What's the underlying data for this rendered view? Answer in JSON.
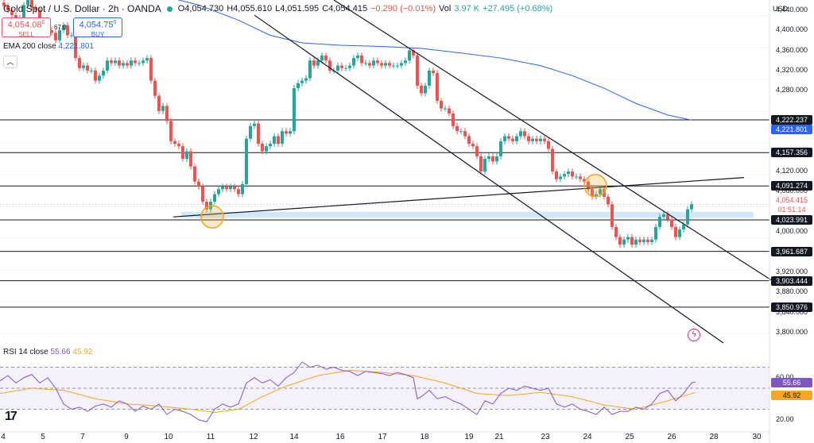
{
  "header": {
    "symbol": "Gold Spot / U.S. Dollar · 2h · OANDA",
    "open": "O4,054.730",
    "high": "H4,055.610",
    "low": "L4,051.595",
    "close": "C4,054.415",
    "change": "−0.290 (−0.01%)",
    "volume_label": "Vol",
    "volume": "3.97 K",
    "vol_change": "+27.495 (+0.68%)"
  },
  "trade": {
    "sell_price": "4,054.08",
    "sell_price_sup": "0",
    "sell_label": "SELL",
    "spread": "67.0",
    "buy_price": "4,054.75",
    "buy_price_sup": "0",
    "buy_label": "BUY"
  },
  "indicators": {
    "ema_label": "EMA 200 close",
    "ema_value": "4,221.801",
    "collapse_icon": "chevron-up-icon",
    "rsi_label": "RSI 14 close",
    "rsi_value": "55.66",
    "rsi_ma_value": "45.92"
  },
  "axis": {
    "currency": "USD",
    "price_ticks": [
      "4,440.000",
      "4,400.000",
      "4,360.000",
      "4,320.000",
      "4,280.000",
      "4,200.000",
      "4,120.000",
      "4,080.000",
      "4,000.000",
      "3,920.000",
      "3,880.000",
      "3,840.000",
      "3,800.000"
    ],
    "rsi_ticks": [
      "60.00",
      "40.00",
      "20.00"
    ],
    "date_ticks": [
      "4",
      "5",
      "7",
      "9",
      "10",
      "11",
      "12",
      "14",
      "16",
      "17",
      "18",
      "19",
      "21",
      "23",
      "24",
      "25",
      "26",
      "28",
      "30"
    ]
  },
  "levels": [
    {
      "label": "4,222.237",
      "value": 4222.237
    },
    {
      "label": "4,157.356",
      "value": 4157.356
    },
    {
      "label": "4,091.274",
      "value": 4091.274
    },
    {
      "label": "4,023.991",
      "value": 4023.991
    },
    {
      "label": "3,961.687",
      "value": 3961.687
    },
    {
      "label": "3,903.444",
      "value": 3903.444
    },
    {
      "label": "3,850.976",
      "value": 3850.976
    }
  ],
  "price_tags": {
    "ema_tag": "4,221.801",
    "last_price": "4,054.415",
    "countdown": "01:51:14",
    "rsi_tag": "55.66",
    "rsi_ma_tag": "45.92"
  },
  "colors": {
    "up": "#26a69a",
    "down": "#ef5350",
    "ema": "#2962ff",
    "rsi": "#7e57c2",
    "rsi_ma": "#f5a623",
    "zone": "#bbdefb",
    "highlight": "#f5a623",
    "rsi_band": "#ede7f6"
  },
  "chart_data": {
    "type": "candlestick",
    "title": "Gold Spot / U.S. Dollar · 2h · OANDA",
    "ylim": [
      3780,
      4460
    ],
    "x": [
      "4",
      "5",
      "7",
      "9",
      "10",
      "11",
      "12",
      "14",
      "16",
      "17",
      "18",
      "19",
      "21",
      "23",
      "24",
      "25",
      "26",
      "28",
      "30"
    ],
    "close_path": [
      [
        0,
        4455
      ],
      [
        5,
        4448
      ],
      [
        10,
        4440
      ],
      [
        15,
        4430
      ],
      [
        20,
        4425
      ],
      [
        25,
        4415
      ],
      [
        30,
        4450
      ],
      [
        35,
        4460
      ],
      [
        40,
        4445
      ],
      [
        45,
        4440
      ],
      [
        50,
        4410
      ],
      [
        55,
        4405
      ],
      [
        60,
        4400
      ],
      [
        65,
        4395
      ],
      [
        70,
        4380
      ],
      [
        75,
        4400
      ],
      [
        80,
        4410
      ],
      [
        85,
        4390
      ],
      [
        90,
        4390
      ],
      [
        95,
        4345
      ],
      [
        100,
        4325
      ],
      [
        105,
        4330
      ],
      [
        110,
        4320
      ],
      [
        115,
        4320
      ],
      [
        120,
        4300
      ],
      [
        125,
        4310
      ],
      [
        130,
        4320
      ],
      [
        135,
        4340
      ],
      [
        140,
        4335
      ],
      [
        145,
        4340
      ],
      [
        150,
        4330
      ],
      [
        155,
        4335
      ],
      [
        160,
        4330
      ],
      [
        165,
        4340
      ],
      [
        170,
        4335
      ],
      [
        175,
        4335
      ],
      [
        180,
        4340
      ],
      [
        185,
        4345
      ],
      [
        190,
        4300
      ],
      [
        195,
        4270
      ],
      [
        200,
        4240
      ],
      [
        205,
        4250
      ],
      [
        210,
        4220
      ],
      [
        215,
        4180
      ],
      [
        220,
        4175
      ],
      [
        225,
        4170
      ],
      [
        230,
        4145
      ],
      [
        235,
        4160
      ],
      [
        240,
        4130
      ],
      [
        245,
        4100
      ],
      [
        250,
        4090
      ],
      [
        255,
        4060
      ],
      [
        260,
        4045
      ],
      [
        265,
        4060
      ],
      [
        270,
        4075
      ],
      [
        275,
        4085
      ],
      [
        280,
        4090
      ],
      [
        285,
        4085
      ],
      [
        290,
        4090
      ],
      [
        295,
        4085
      ],
      [
        300,
        4075
      ],
      [
        305,
        4095
      ],
      [
        310,
        4185
      ],
      [
        315,
        4210
      ],
      [
        320,
        4215
      ],
      [
        325,
        4175
      ],
      [
        330,
        4160
      ],
      [
        335,
        4170
      ],
      [
        340,
        4175
      ],
      [
        345,
        4190
      ],
      [
        350,
        4175
      ],
      [
        355,
        4200
      ],
      [
        360,
        4195
      ],
      [
        365,
        4200
      ],
      [
        370,
        4285
      ],
      [
        375,
        4295
      ],
      [
        380,
        4300
      ],
      [
        385,
        4305
      ],
      [
        390,
        4340
      ],
      [
        395,
        4330
      ],
      [
        400,
        4340
      ],
      [
        405,
        4350
      ],
      [
        410,
        4340
      ],
      [
        415,
        4320
      ],
      [
        420,
        4320
      ],
      [
        425,
        4330
      ],
      [
        430,
        4325
      ],
      [
        435,
        4325
      ],
      [
        440,
        4330
      ],
      [
        445,
        4345
      ],
      [
        450,
        4350
      ],
      [
        455,
        4335
      ],
      [
        460,
        4335
      ],
      [
        465,
        4330
      ],
      [
        470,
        4340
      ],
      [
        475,
        4335
      ],
      [
        480,
        4330
      ],
      [
        485,
        4335
      ],
      [
        490,
        4330
      ],
      [
        495,
        4330
      ],
      [
        500,
        4330
      ],
      [
        505,
        4335
      ],
      [
        510,
        4340
      ],
      [
        515,
        4360
      ],
      [
        520,
        4350
      ],
      [
        525,
        4290
      ],
      [
        530,
        4275
      ],
      [
        535,
        4290
      ],
      [
        540,
        4320
      ],
      [
        545,
        4315
      ],
      [
        550,
        4260
      ],
      [
        555,
        4245
      ],
      [
        560,
        4245
      ],
      [
        565,
        4235
      ],
      [
        570,
        4210
      ],
      [
        575,
        4200
      ],
      [
        580,
        4200
      ],
      [
        585,
        4190
      ],
      [
        590,
        4175
      ],
      [
        595,
        4170
      ],
      [
        600,
        4150
      ],
      [
        605,
        4120
      ],
      [
        610,
        4145
      ],
      [
        615,
        4150
      ],
      [
        620,
        4140
      ],
      [
        625,
        4150
      ],
      [
        630,
        4180
      ],
      [
        635,
        4190
      ],
      [
        640,
        4185
      ],
      [
        645,
        4180
      ],
      [
        650,
        4190
      ],
      [
        655,
        4200
      ],
      [
        660,
        4190
      ],
      [
        665,
        4180
      ],
      [
        670,
        4185
      ],
      [
        675,
        4180
      ],
      [
        680,
        4185
      ],
      [
        685,
        4180
      ],
      [
        690,
        4165
      ],
      [
        695,
        4120
      ],
      [
        700,
        4105
      ],
      [
        705,
        4110
      ],
      [
        710,
        4115
      ],
      [
        715,
        4120
      ],
      [
        720,
        4110
      ],
      [
        725,
        4110
      ],
      [
        730,
        4105
      ],
      [
        735,
        4100
      ],
      [
        740,
        4085
      ],
      [
        745,
        4070
      ],
      [
        750,
        4075
      ],
      [
        755,
        4085
      ],
      [
        760,
        4070
      ],
      [
        765,
        4055
      ],
      [
        770,
        4010
      ],
      [
        775,
        3990
      ],
      [
        780,
        3975
      ],
      [
        785,
        3985
      ],
      [
        790,
        3990
      ],
      [
        795,
        3975
      ],
      [
        800,
        3985
      ],
      [
        805,
        3980
      ],
      [
        810,
        3985
      ],
      [
        815,
        3980
      ],
      [
        820,
        3985
      ],
      [
        825,
        4010
      ],
      [
        830,
        4030
      ],
      [
        835,
        4035
      ],
      [
        840,
        4025
      ],
      [
        845,
        4010
      ],
      [
        850,
        3990
      ],
      [
        855,
        4005
      ],
      [
        860,
        4015
      ],
      [
        865,
        4045
      ],
      [
        870,
        4055
      ]
    ],
    "ema_path": [
      [
        170,
        4480
      ],
      [
        200,
        4470
      ],
      [
        250,
        4450
      ],
      [
        300,
        4420
      ],
      [
        340,
        4390
      ],
      [
        380,
        4375
      ],
      [
        430,
        4370
      ],
      [
        480,
        4368
      ],
      [
        530,
        4364
      ],
      [
        580,
        4355
      ],
      [
        630,
        4345
      ],
      [
        680,
        4330
      ],
      [
        720,
        4310
      ],
      [
        760,
        4285
      ],
      [
        800,
        4255
      ],
      [
        840,
        4232
      ],
      [
        870,
        4222
      ]
    ],
    "trendlines": [
      {
        "from": [
          320,
          4430
        ],
        "to": [
          910,
          3780
        ]
      },
      {
        "from": [
          420,
          4460
        ],
        "to": [
          970,
          3905
        ]
      },
      {
        "from": [
          218,
          4030
        ],
        "to": [
          936,
          4108
        ]
      }
    ],
    "zone": [
      4028,
      4040
    ],
    "highlights": [
      [
        267,
        4030
      ],
      [
        749,
        4092
      ]
    ],
    "rsi_series": [
      [
        0,
        57
      ],
      [
        10,
        62
      ],
      [
        20,
        55
      ],
      [
        30,
        60
      ],
      [
        40,
        63
      ],
      [
        50,
        55
      ],
      [
        60,
        60
      ],
      [
        70,
        50
      ],
      [
        80,
        35
      ],
      [
        90,
        30
      ],
      [
        100,
        32
      ],
      [
        110,
        28
      ],
      [
        120,
        33
      ],
      [
        130,
        35
      ],
      [
        140,
        32
      ],
      [
        150,
        38
      ],
      [
        160,
        35
      ],
      [
        170,
        28
      ],
      [
        180,
        33
      ],
      [
        190,
        30
      ],
      [
        200,
        35
      ],
      [
        210,
        25
      ],
      [
        220,
        30
      ],
      [
        230,
        28
      ],
      [
        240,
        25
      ],
      [
        250,
        20
      ],
      [
        260,
        18
      ],
      [
        270,
        30
      ],
      [
        280,
        35
      ],
      [
        290,
        32
      ],
      [
        300,
        35
      ],
      [
        310,
        55
      ],
      [
        320,
        60
      ],
      [
        330,
        55
      ],
      [
        340,
        58
      ],
      [
        350,
        52
      ],
      [
        360,
        60
      ],
      [
        370,
        65
      ],
      [
        380,
        75
      ],
      [
        390,
        70
      ],
      [
        400,
        72
      ],
      [
        410,
        68
      ],
      [
        420,
        70
      ],
      [
        430,
        67
      ],
      [
        440,
        66
      ],
      [
        450,
        62
      ],
      [
        460,
        66
      ],
      [
        470,
        65
      ],
      [
        480,
        64
      ],
      [
        490,
        62
      ],
      [
        500,
        65
      ],
      [
        510,
        63
      ],
      [
        520,
        60
      ],
      [
        525,
        40
      ],
      [
        530,
        42
      ],
      [
        540,
        48
      ],
      [
        550,
        40
      ],
      [
        560,
        42
      ],
      [
        570,
        38
      ],
      [
        580,
        35
      ],
      [
        590,
        30
      ],
      [
        600,
        25
      ],
      [
        610,
        38
      ],
      [
        620,
        35
      ],
      [
        630,
        45
      ],
      [
        640,
        50
      ],
      [
        650,
        48
      ],
      [
        660,
        52
      ],
      [
        670,
        50
      ],
      [
        680,
        48
      ],
      [
        690,
        50
      ],
      [
        700,
        35
      ],
      [
        710,
        32
      ],
      [
        720,
        35
      ],
      [
        730,
        30
      ],
      [
        740,
        28
      ],
      [
        750,
        25
      ],
      [
        760,
        32
      ],
      [
        770,
        25
      ],
      [
        780,
        28
      ],
      [
        790,
        28
      ],
      [
        800,
        32
      ],
      [
        810,
        30
      ],
      [
        820,
        35
      ],
      [
        830,
        45
      ],
      [
        840,
        48
      ],
      [
        850,
        38
      ],
      [
        860,
        45
      ],
      [
        870,
        55
      ],
      [
        875,
        56
      ]
    ],
    "rsi_ma_series": [
      [
        0,
        45
      ],
      [
        40,
        50
      ],
      [
        80,
        48
      ],
      [
        120,
        40
      ],
      [
        160,
        35
      ],
      [
        200,
        33
      ],
      [
        240,
        30
      ],
      [
        270,
        27
      ],
      [
        300,
        30
      ],
      [
        330,
        42
      ],
      [
        360,
        52
      ],
      [
        400,
        62
      ],
      [
        440,
        67
      ],
      [
        480,
        65
      ],
      [
        520,
        62
      ],
      [
        560,
        55
      ],
      [
        600,
        45
      ],
      [
        640,
        43
      ],
      [
        680,
        46
      ],
      [
        720,
        42
      ],
      [
        760,
        34
      ],
      [
        800,
        30
      ],
      [
        840,
        38
      ],
      [
        875,
        46
      ]
    ]
  }
}
